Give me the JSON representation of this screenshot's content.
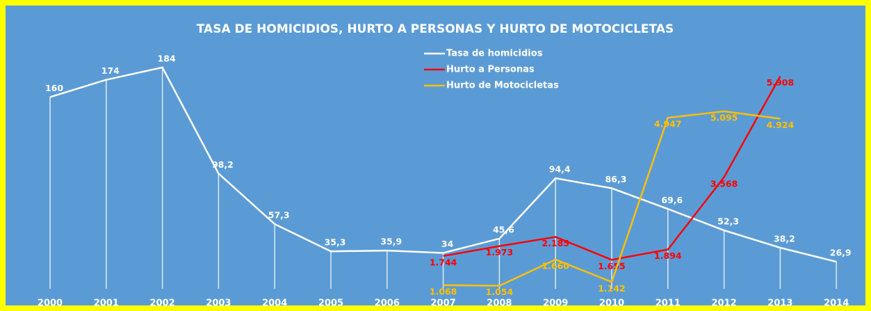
{
  "chart_data": {
    "type": "line",
    "title": "TASA DE HOMICIDIOS, HURTO A PERSONAS Y HURTO DE MOTOCICLETAS",
    "categories": [
      "2000",
      "2001",
      "2002",
      "2003",
      "2004",
      "2005",
      "2006",
      "2007",
      "2008",
      "2009",
      "2010",
      "2011",
      "2012",
      "2013",
      "2014"
    ],
    "ylim": [
      0,
      216
    ],
    "y2lim": [
      840,
      7030
    ],
    "legend": "top",
    "series": [
      {
        "name": "Tasa de homicidios",
        "color": "#ffffff",
        "values": [
          160,
          174,
          184,
          98.2,
          57.3,
          35.3,
          35.9,
          34,
          45.6,
          94.4,
          86.3,
          69.6,
          52.3,
          38.2,
          26.9
        ],
        "value_labels": [
          "160",
          "174",
          "184",
          "98,2",
          "57,3",
          "35,3",
          "35,9",
          "34",
          "45,6",
          "94,4",
          "86,3",
          "69,6",
          "52,3",
          "38,2",
          "26,9"
        ]
      },
      {
        "name": "Hurto a Personas",
        "color": "#ff0000",
        "axis": "y2",
        "values": [
          null,
          null,
          null,
          null,
          null,
          null,
          null,
          1744,
          1973,
          2185,
          1655,
          1894,
          3568,
          5908,
          null
        ],
        "value_labels": [
          null,
          null,
          null,
          null,
          null,
          null,
          null,
          "1.744",
          "1.973",
          "2.185",
          "1.655",
          "1.894",
          "3.568",
          "5.908",
          null
        ]
      },
      {
        "name": "Hurto de Motocicletas",
        "color": "#ffc000",
        "axis": "y2",
        "values": [
          null,
          null,
          null,
          null,
          null,
          null,
          null,
          1068,
          1054,
          1660,
          1142,
          4947,
          5095,
          4924,
          null
        ],
        "value_labels": [
          null,
          null,
          null,
          null,
          null,
          null,
          null,
          "1.068",
          "1.054",
          "1.660",
          "1.142",
          "4.947",
          "5.095",
          "4.924",
          null
        ]
      }
    ]
  }
}
